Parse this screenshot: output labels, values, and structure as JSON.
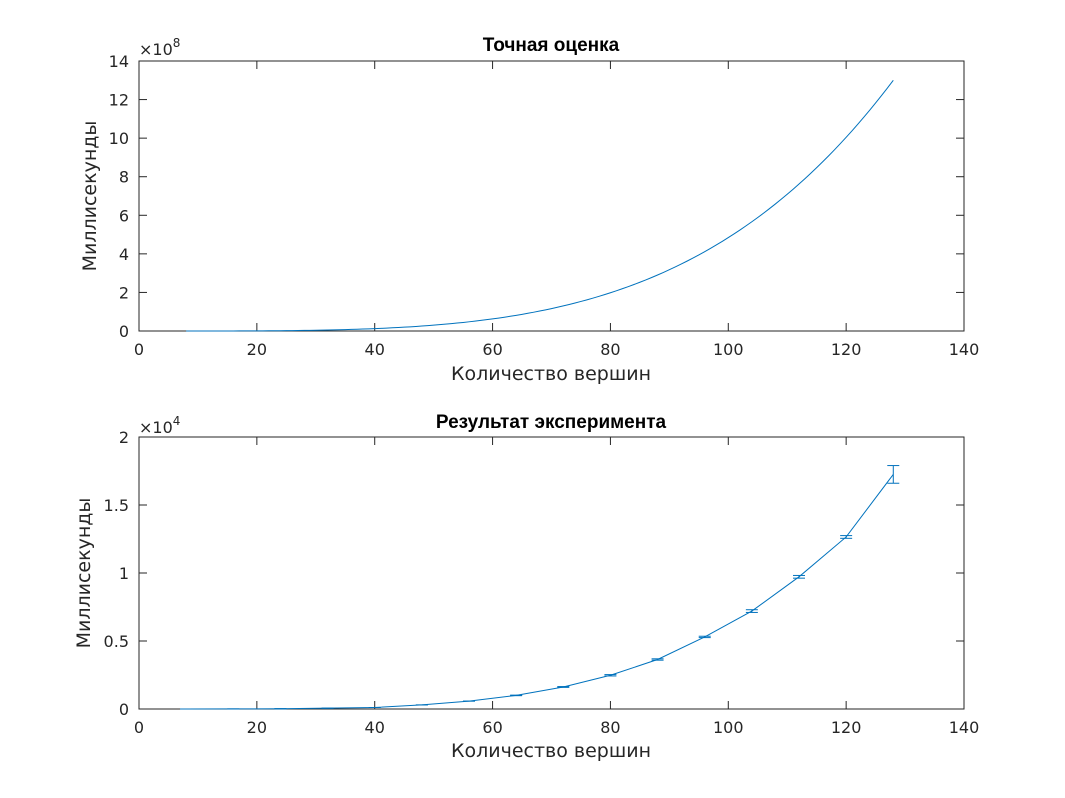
{
  "chart_data": [
    {
      "type": "line",
      "title": "Точная оценка",
      "xlabel": "Количество вершин",
      "ylabel": "Миллисекунды",
      "xlim": [
        0,
        140
      ],
      "ylim": [
        0,
        1400000000
      ],
      "xticks": [
        0,
        20,
        40,
        60,
        80,
        100,
        120,
        140
      ],
      "yticks": [
        0,
        2,
        4,
        6,
        8,
        10,
        12,
        14
      ],
      "multiplier": {
        "base": "×10",
        "exp": "8"
      },
      "grid": false,
      "color": "#0072bd",
      "series": [
        {
          "x": [
            8,
            16,
            24,
            32,
            40,
            48,
            56,
            64,
            72,
            80,
            88,
            96,
            104,
            112,
            120,
            128
          ],
          "values": [
            19000,
            310000,
            1600000,
            5000000,
            12000000,
            26000000,
            48000000,
            81000000,
            130000000,
            198000000,
            290000000,
            410000000,
            565000000,
            760000000,
            1000000000,
            1300000000
          ]
        }
      ]
    },
    {
      "type": "line",
      "title": "Результат эксперимента",
      "xlabel": "Количество вершин",
      "ylabel": "Миллисекунды",
      "xlim": [
        0,
        140
      ],
      "ylim": [
        0,
        20000
      ],
      "xticks": [
        0,
        20,
        40,
        60,
        80,
        100,
        120,
        140
      ],
      "yticks": [
        "0",
        "0.5",
        "1",
        "1.5",
        "2"
      ],
      "multiplier": {
        "base": "×10",
        "exp": "4"
      },
      "grid": false,
      "color": "#0072bd",
      "series": [
        {
          "x": [
            8,
            16,
            24,
            32,
            40,
            48,
            56,
            64,
            72,
            80,
            88,
            96,
            104,
            112,
            120,
            128
          ],
          "values": [
            1,
            5,
            20,
            60,
            110,
            300,
            580,
            1000,
            1620,
            2480,
            3640,
            5300,
            7200,
            9720,
            12650,
            17250
          ],
          "error": [
            0,
            0,
            0,
            0,
            0,
            0,
            0,
            20,
            30,
            50,
            50,
            50,
            100,
            100,
            100,
            650
          ]
        }
      ]
    }
  ]
}
